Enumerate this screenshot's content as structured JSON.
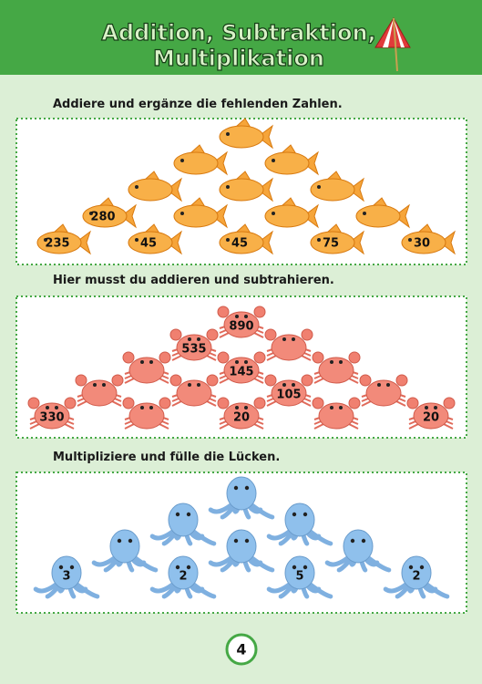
{
  "header": {
    "title_lines": [
      "Addition, Subtraktion,",
      "Multiplikation"
    ]
  },
  "sections": [
    {
      "instruction": "Addiere und ergänze die fehlenden Zahlen.",
      "pyramid": [
        [
          null
        ],
        [
          null,
          null
        ],
        [
          null,
          null,
          null
        ],
        [
          280,
          null,
          null,
          null
        ],
        [
          235,
          45,
          45,
          75,
          30
        ]
      ]
    },
    {
      "instruction": "Hier musst du addieren und subtrahieren.",
      "pyramid": [
        [
          890
        ],
        [
          535,
          null
        ],
        [
          null,
          145,
          null
        ],
        [
          null,
          null,
          105,
          null
        ],
        [
          330,
          null,
          20,
          null,
          20
        ]
      ]
    },
    {
      "instruction": "Multipliziere und fülle die Lücken.",
      "pyramid": [
        [
          null
        ],
        [
          null,
          null
        ],
        [
          null,
          null,
          null
        ],
        [
          3,
          2,
          5,
          2
        ]
      ]
    }
  ],
  "page_number": 4
}
